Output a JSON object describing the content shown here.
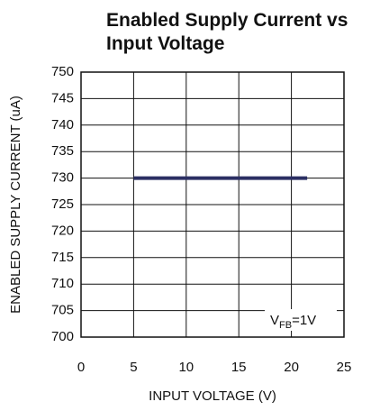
{
  "chart_data": {
    "type": "line",
    "title": [
      "Enabled Supply Current vs",
      "Input Voltage"
    ],
    "x_label": "INPUT VOLTAGE (V)",
    "y_label": "ENABLED SUPPLY CURRENT (uA)",
    "x": [
      5,
      21.5
    ],
    "series": [
      {
        "color": "#2b2f63",
        "values": [
          730,
          730
        ]
      }
    ],
    "xlim": [
      0,
      25
    ],
    "xticks": [
      0,
      5,
      10,
      15,
      20,
      25
    ],
    "ylim": [
      700,
      750
    ],
    "yticks": [
      700,
      705,
      710,
      715,
      720,
      725,
      730,
      735,
      740,
      745,
      750
    ],
    "grid": true,
    "annotation": {
      "text": "V",
      "subscript": "FB",
      "suffix": "=1V"
    }
  }
}
